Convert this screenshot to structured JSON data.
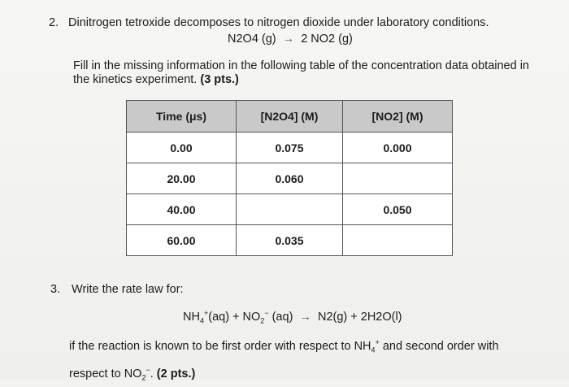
{
  "q2": {
    "number": "2.",
    "text": "Dinitrogen tetroxide decomposes to nitrogen dioxide under laboratory conditions.",
    "equation_left": "N2O4 (g)",
    "equation_arrow": "→",
    "equation_right": "2 NO2 (g)",
    "instruction": "Fill in the missing information in the following table of the concentration data obtained in the kinetics experiment.",
    "points": "(3 pts.)"
  },
  "table": {
    "headers": [
      "Time (μs)",
      "[N2O4] (M)",
      "[NO2] (M)"
    ],
    "rows": [
      [
        "0.00",
        "0.075",
        "0.000"
      ],
      [
        "20.00",
        "0.060",
        ""
      ],
      [
        "40.00",
        "",
        "0.050"
      ],
      [
        "60.00",
        "0.035",
        ""
      ]
    ]
  },
  "q3": {
    "number": "3.",
    "text": "Write the rate law for:",
    "eq_nh4": "NH",
    "eq_nh4_sub": "4",
    "eq_nh4_sup": "+",
    "eq_part2": "(aq) + NO",
    "eq_no2_sub": "2",
    "eq_no2_sup": "−",
    "eq_part3": " (aq)",
    "eq_arrow": "→",
    "eq_products": "N2(g) + 2H2O(l)",
    "line1_pre": "if the reaction is known to be first order with respect to NH",
    "line1_sub": "4",
    "line1_sup": "+",
    "line1_post": " and second order with",
    "line2_pre": "respect to NO",
    "line2_sub": "2",
    "line2_sup": "−",
    "line2_post": ".",
    "points": "(2 pts.)"
  }
}
